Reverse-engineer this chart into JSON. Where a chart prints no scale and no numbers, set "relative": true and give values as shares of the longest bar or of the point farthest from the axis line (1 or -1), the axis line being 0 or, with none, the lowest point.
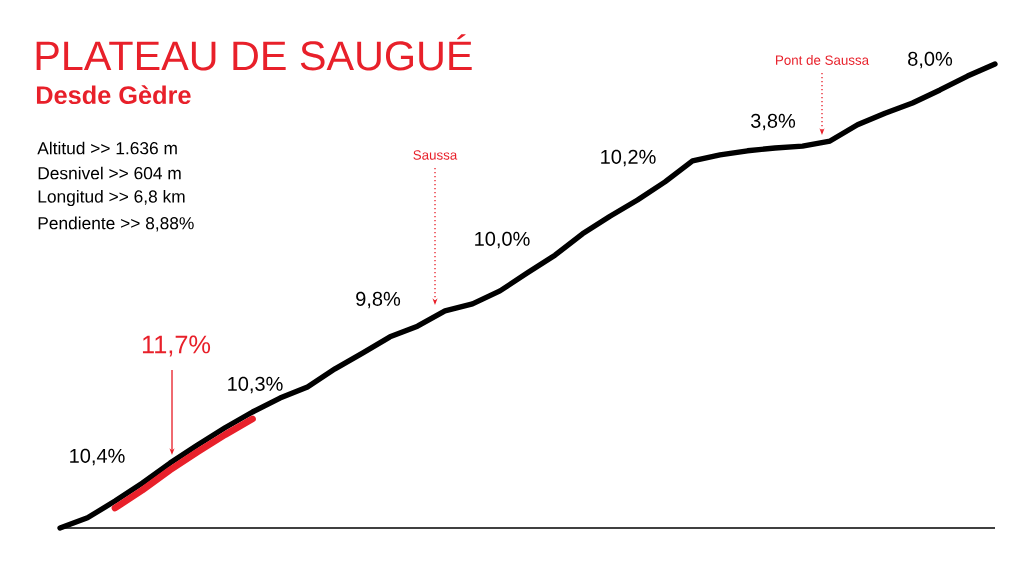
{
  "chart_data": {
    "type": "line",
    "title": "PLATEAU DE SAUGUÉ",
    "subtitle": "Desde Gèdre",
    "relative": true,
    "marker": "none",
    "categories": [
      null,
      null,
      null,
      null,
      null,
      null,
      null,
      null,
      null,
      null,
      null,
      null,
      null,
      null,
      null,
      null,
      null,
      null,
      null,
      null,
      null,
      null,
      null,
      null,
      null,
      null,
      null,
      null,
      null,
      null,
      null,
      null,
      null,
      null,
      null
    ],
    "series": [
      {
        "color": "#000000",
        "values": [
          0,
          0.022,
          0.058,
          0.097,
          0.14,
          0.179,
          0.216,
          0.25,
          0.28,
          0.304,
          0.343,
          0.377,
          0.412,
          0.435,
          0.468,
          0.483,
          0.511,
          0.55,
          0.588,
          0.634,
          0.672,
          0.707,
          0.746,
          0.791,
          0.804,
          0.813,
          0.819,
          0.823,
          0.834,
          0.869,
          0.894,
          0.916,
          0.944,
          0.974,
          1
        ]
      },
      {
        "color": "#e8202a",
        "values": [
          null,
          null,
          0.043,
          0.082,
          0.125,
          0.164,
          0.201,
          0.235,
          null,
          null,
          null,
          null,
          null,
          null,
          null,
          null,
          null,
          null,
          null,
          null,
          null,
          null,
          null,
          null,
          null,
          null,
          null,
          null,
          null,
          null,
          null,
          null,
          null,
          null,
          null
        ]
      }
    ],
    "annotations": [
      "Altitud >> 1.636 m",
      "Desnivel >> 604 m",
      "Longitud >> 6,8 km",
      "Pendiente >> 8,88%",
      "10,4%",
      "11,7%",
      "10,3%",
      "9,8%",
      "10,0%",
      "10,2%",
      "3,8%",
      "8,0%",
      "Saussa",
      "Pont de Saussa"
    ]
  }
}
